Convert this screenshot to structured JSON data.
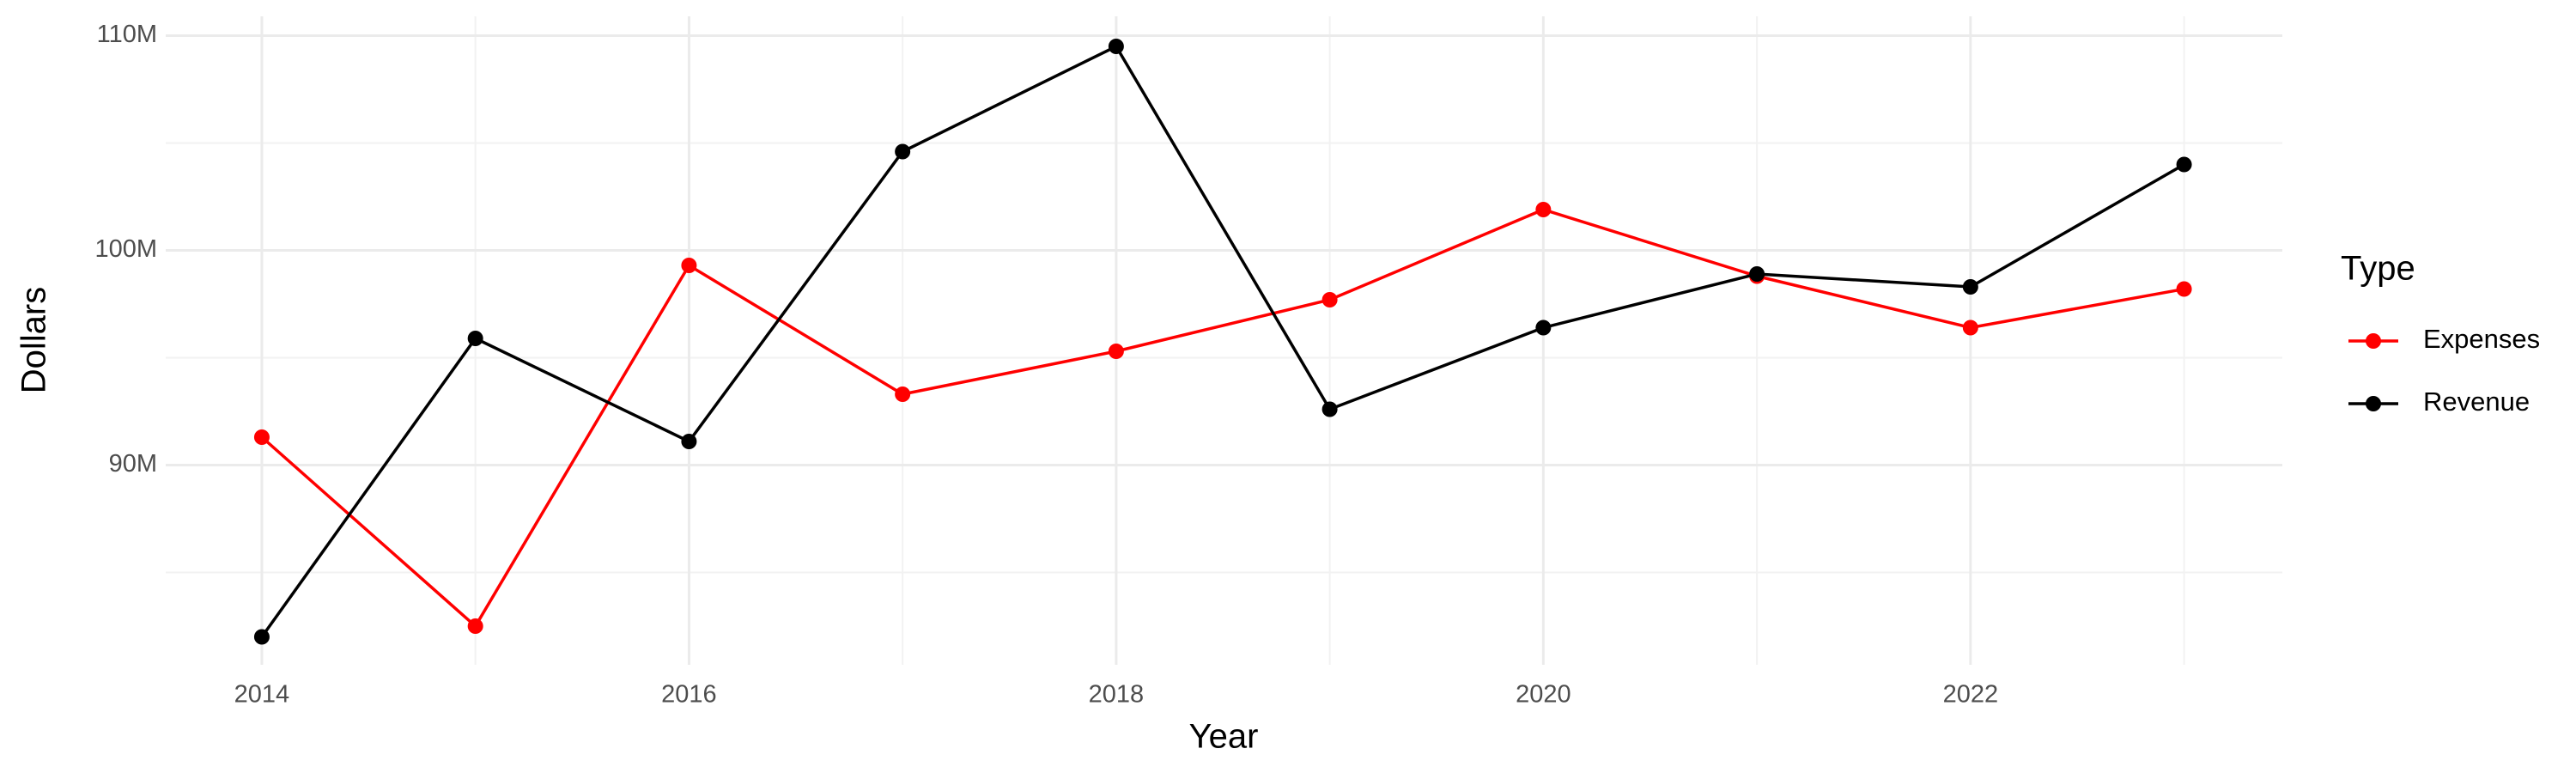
{
  "chart_data": {
    "type": "line",
    "x_label": "Year",
    "y_label": "Dollars",
    "legend_title": "Type",
    "x": [
      2014,
      2015,
      2016,
      2017,
      2018,
      2019,
      2020,
      2021,
      2022,
      2023
    ],
    "series": [
      {
        "name": "Expenses",
        "color": "#ff0000",
        "values": [
          91300000,
          82500000,
          99300000,
          93300000,
          95300000,
          97700000,
          101900000,
          98800000,
          96400000,
          98200000
        ]
      },
      {
        "name": "Revenue",
        "color": "#000000",
        "values": [
          82000000,
          95900000,
          91100000,
          104600000,
          109500000,
          92600000,
          96400000,
          98900000,
          98300000,
          104000000
        ]
      }
    ],
    "xlim": [
      2013.55,
      2023.46
    ],
    "xticks": [
      2014,
      2016,
      2018,
      2020,
      2022
    ],
    "ylim": [
      80700000,
      110900000
    ],
    "yticks": [
      {
        "value": 90000000,
        "label": "90M"
      },
      {
        "value": 100000000,
        "label": "100M"
      },
      {
        "value": 110000000,
        "label": "110M"
      }
    ],
    "grid": true,
    "legend_position": "right"
  }
}
